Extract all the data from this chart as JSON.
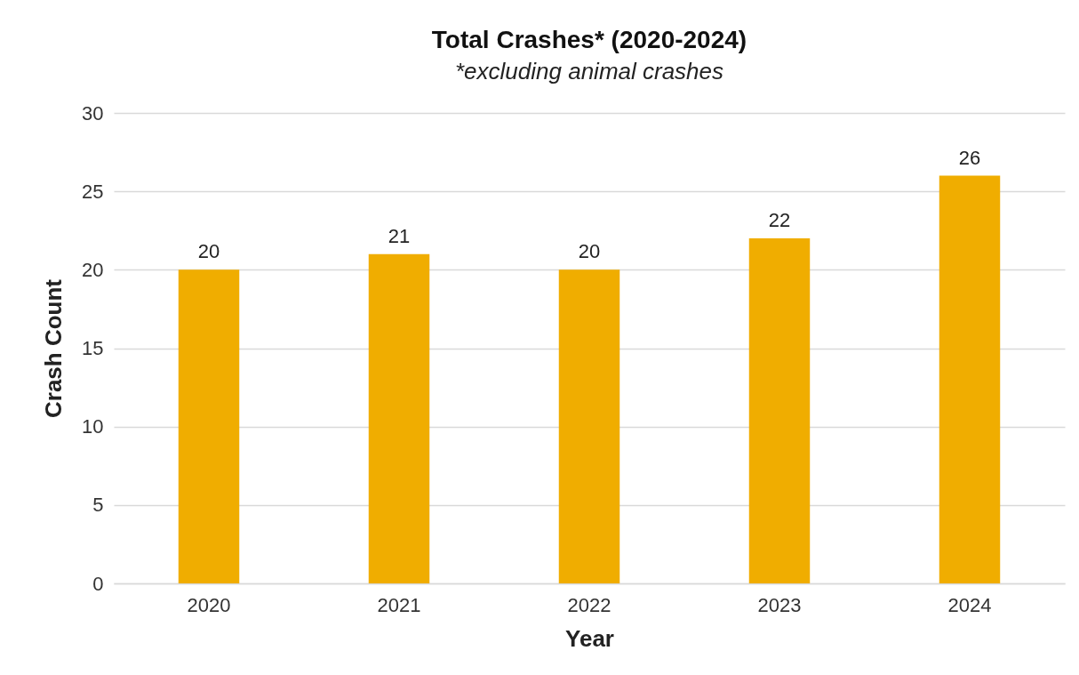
{
  "chart_data": {
    "type": "bar",
    "title": "Total Crashes* (2020-2024)",
    "subtitle": "*excluding animal crashes",
    "xlabel": "Year",
    "ylabel": "Crash Count",
    "categories": [
      "2020",
      "2021",
      "2022",
      "2023",
      "2024"
    ],
    "values": [
      20,
      21,
      20,
      22,
      26
    ],
    "color": "#f0ad00",
    "ylim": [
      0,
      30
    ],
    "yticks": [
      0,
      5,
      10,
      15,
      20,
      25,
      30
    ],
    "grid": "y",
    "data_labels": true
  }
}
